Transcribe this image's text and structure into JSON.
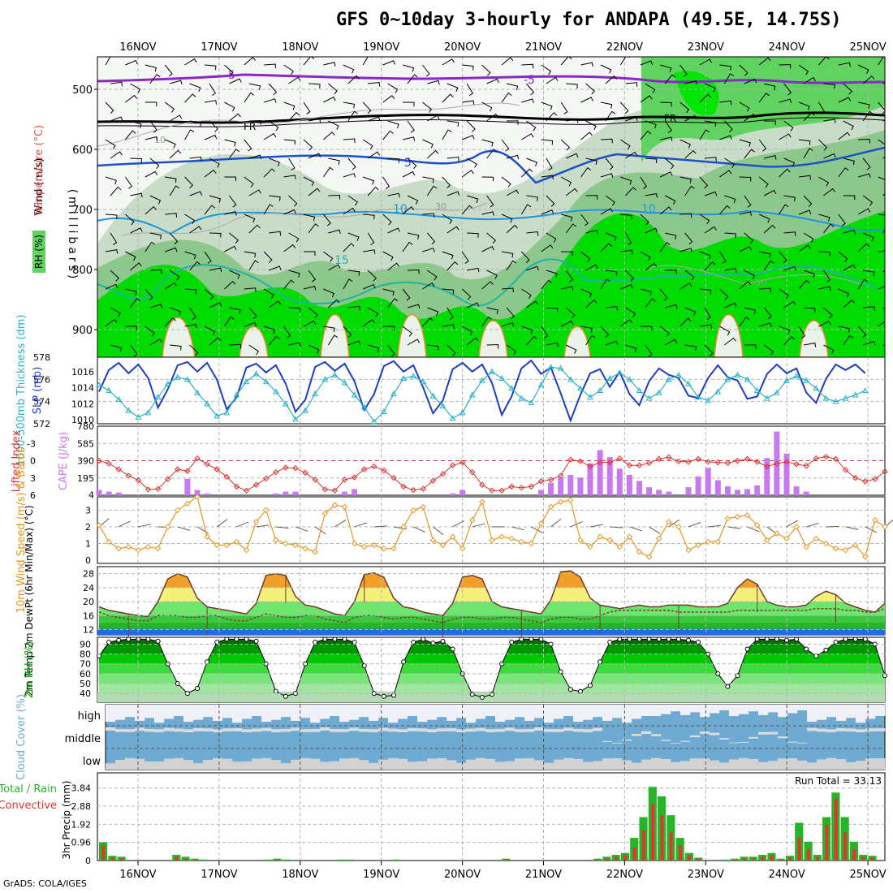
{
  "title": "GFS 0~10day 3-hourly for ANDAPA (49.5E, 14.75S)",
  "credit": "GrADS: COLA/IGES",
  "x_axis": {
    "labels": [
      "16NOV",
      "17NOV",
      "18NOV",
      "19NOV",
      "20NOV",
      "21NOV",
      "22NOV",
      "23NOV",
      "24NOV",
      "25NOV"
    ]
  },
  "run_total_label": "Run Total = 33.13",
  "colors": {
    "rh_dark": "#00c800",
    "rh_mid": "#5fd25f",
    "rh_light": "#c8dcc8",
    "temp_purple": "#8c28c8",
    "temp_blue": "#1e50c8",
    "temp_sky": "#1e96dc",
    "temp_teal": "#1eb4a0",
    "temp_orange": "#e68c28",
    "slp": "#1e3cc8",
    "thickness": "#28b4c8",
    "lifted": "#dc3232",
    "cape": "#c878f0",
    "wind10": "#e6961e",
    "temp2m": "#646464",
    "rh2m": "#00a000",
    "cloud": "#6eaad2",
    "precip_total": "#28b428",
    "precip_conv": "#e63232"
  },
  "chart_data": [
    {
      "type": "heatmap",
      "panel": "upper-air",
      "ylabel": "(millibars)",
      "legend_labels": [
        "Wind (m/s)",
        "Temperature (°C)",
        "RH (%)"
      ],
      "y_ticks": [
        500,
        600,
        700,
        800,
        900
      ],
      "contour_labels": [
        "-5",
        "-5",
        "FR",
        "FR",
        "5",
        "10",
        "10",
        "15",
        "10",
        "30",
        "50"
      ]
    },
    {
      "type": "line",
      "panel": "slp-thickness",
      "ylabel_left": "1000-500mb Thickness (dm)",
      "ylabel_right": "SLP (mb)",
      "y_ticks_left": [
        572,
        574,
        576,
        578
      ],
      "y_ticks_right": [
        1010,
        1012,
        1014,
        1016
      ],
      "series": [
        {
          "name": "SLP (mb)",
          "values": [
            1013.5,
            1016.2,
            1017.1,
            1015.8,
            1016.9,
            1015.2,
            1011.5,
            1013.8,
            1016.8,
            1017.2,
            1016.0,
            1017.1,
            1015.0,
            1011.3,
            1012.8,
            1016.5,
            1017.0,
            1015.9,
            1016.8,
            1014.5,
            1011.0,
            1012.5,
            1016.6,
            1017.2,
            1016.1,
            1017.0,
            1014.8,
            1011.2,
            1013.2,
            1016.7,
            1017.3,
            1016.0,
            1016.8,
            1014.0,
            1010.8,
            1012.4,
            1016.3,
            1017.1,
            1016.0,
            1016.9,
            1014.6,
            1010.6,
            1012.9,
            1016.4,
            1017.4,
            1015.7,
            1016.5,
            1013.3,
            1009.9,
            1013.1,
            1015.8,
            1016.3,
            1014.1,
            1016.0,
            1013.2,
            1011.8,
            1014.8,
            1016.4,
            1015.6,
            1015.2,
            1013.0,
            1012.7,
            1015.2,
            1016.8,
            1015.3,
            1014.9,
            1012.6,
            1012.9,
            1015.7,
            1016.9,
            1015.8,
            1016.4,
            1013.4,
            1012.1,
            1015.1,
            1016.9,
            1016.2,
            1016.9,
            1015.8
          ]
        },
        {
          "name": "1000-500mb Thickness (dm)",
          "values": [
            575.5,
            575.0,
            574.2,
            573.2,
            572.6,
            573.0,
            574.4,
            575.6,
            576.2,
            576.0,
            574.8,
            573.8,
            572.7,
            573.0,
            574.6,
            575.8,
            576.5,
            575.8,
            574.9,
            573.8,
            572.4,
            573.2,
            574.7,
            576.0,
            576.4,
            575.7,
            574.6,
            573.5,
            572.2,
            573.1,
            574.7,
            576.1,
            576.3,
            575.8,
            574.5,
            573.6,
            572.5,
            573.0,
            574.6,
            575.9,
            576.7,
            576.1,
            575.2,
            574.3,
            573.9,
            575.5,
            577.1,
            577.0,
            576.0,
            575.2,
            574.4,
            575.0,
            576.1,
            576.6,
            576.0,
            575.0,
            574.3,
            574.8,
            576.0,
            576.4,
            575.6,
            574.4,
            574.1,
            574.9,
            576.0,
            576.4,
            576.0,
            575.0,
            574.3,
            574.8,
            575.9,
            576.3,
            575.9,
            575.2,
            574.3,
            574.0,
            574.3,
            574.6,
            575.0
          ]
        }
      ]
    },
    {
      "type": "bar",
      "panel": "lifted-cape",
      "ylabel_left": "Lifted Index",
      "ylabel_right": "CAPE (J/kg)",
      "y_ticks_left": [
        -3,
        0,
        3,
        6
      ],
      "y_ticks_right": [
        4,
        195,
        390,
        585,
        780
      ],
      "series": [
        {
          "name": "Lifted Index",
          "values": [
            0.0,
            0.5,
            1.5,
            2.6,
            3.4,
            5.0,
            4.9,
            3.2,
            1.5,
            1.8,
            -0.4,
            0.6,
            1.5,
            2.8,
            4.5,
            5.2,
            4.2,
            3.1,
            2.0,
            1.2,
            1.3,
            2.1,
            3.3,
            5.0,
            5.2,
            3.3,
            2.9,
            1.5,
            1.0,
            1.7,
            3.0,
            4.5,
            5.1,
            4.9,
            3.5,
            2.3,
            0.8,
            0.3,
            2.0,
            4.2,
            5.2,
            5.2,
            4.5,
            4.7,
            4.5,
            3.6,
            3.3,
            2.6,
            -0.2,
            0.1,
            1.0,
            0.3,
            0.3,
            -0.4,
            0.8,
            0.8,
            0.4,
            -0.3,
            -0.6,
            0.1,
            0.2,
            -0.3,
            0.2,
            0.3,
            0.4,
            0.0,
            -0.3,
            0.2,
            1.0,
            0.5,
            0.2,
            0.6,
            0.9,
            -0.4,
            -0.7,
            -0.3,
            1.6,
            3.0,
            3.6,
            3.2,
            1.9
          ]
        },
        {
          "name": "CAPE (J/kg)",
          "values": [
            60,
            40,
            30,
            4,
            4,
            4,
            10,
            4,
            4,
            185,
            60,
            20,
            4,
            4,
            4,
            4,
            4,
            4,
            20,
            40,
            40,
            4,
            4,
            4,
            4,
            40,
            70,
            4,
            4,
            4,
            4,
            4,
            4,
            4,
            4,
            4,
            20,
            60,
            4,
            4,
            4,
            4,
            4,
            4,
            4,
            60,
            140,
            200,
            230,
            200,
            360,
            510,
            430,
            300,
            230,
            160,
            90,
            60,
            40,
            4,
            90,
            210,
            310,
            170,
            100,
            60,
            70,
            110,
            420,
            720,
            470,
            100,
            40,
            4,
            4,
            4,
            4,
            4,
            4,
            4,
            4
          ]
        }
      ]
    },
    {
      "type": "line",
      "panel": "wind10m",
      "ylabel": "10m Wind Speed (m/s) & Barbs",
      "y_ticks": [
        0,
        1,
        2,
        3
      ],
      "series": [
        {
          "name": "10m Wind Speed",
          "values": [
            2.1,
            1.1,
            0.7,
            0.8,
            0.6,
            0.8,
            0.7,
            2.0,
            3.0,
            3.4,
            3.8,
            1.4,
            0.9,
            0.9,
            1.1,
            0.6,
            2.3,
            3.0,
            1.2,
            1.0,
            0.9,
            0.7,
            0.5,
            2.8,
            3.3,
            3.2,
            1.0,
            0.8,
            0.9,
            0.7,
            0.7,
            2.0,
            3.0,
            3.2,
            1.2,
            0.9,
            1.4,
            0.7,
            2.4,
            3.5,
            1.2,
            1.4,
            1.3,
            1.1,
            1.0,
            2.2,
            3.2,
            3.5,
            3.6,
            1.2,
            0.8,
            1.4,
            1.2,
            0.8,
            1.4,
            0.5,
            0.2,
            1.3,
            2.3,
            2.0,
            0.6,
            0.9,
            1.1,
            1.1,
            2.5,
            2.6,
            2.7,
            2.1,
            1.2,
            1.6,
            1.3,
            2.0,
            0.8,
            1.3,
            1.0,
            0.7,
            0.6,
            0.9,
            0.2,
            2.4,
            2.0
          ]
        }
      ]
    },
    {
      "type": "area",
      "panel": "temp2m",
      "ylabel": "2m Temp 2m DewPt (6hr Min/Max) (°C)",
      "y_ticks": [
        12,
        16,
        20,
        24,
        28
      ],
      "series": [
        {
          "name": "2m Temp",
          "values": [
            18.5,
            17.5,
            17.0,
            16.5,
            16.0,
            15.8,
            20.0,
            26.5,
            28.0,
            27.0,
            21.0,
            18.5,
            18.0,
            17.5,
            17.0,
            16.5,
            19.5,
            27.5,
            28.0,
            27.5,
            21.5,
            19.0,
            18.5,
            17.5,
            16.5,
            16.0,
            20.0,
            27.8,
            28.2,
            27.0,
            21.0,
            18.5,
            18.0,
            17.0,
            16.5,
            16.0,
            19.5,
            27.0,
            27.5,
            26.5,
            20.0,
            18.5,
            18.0,
            17.5,
            17.0,
            16.5,
            20.5,
            28.5,
            28.8,
            27.0,
            21.0,
            19.0,
            18.5,
            18.0,
            18.5,
            19.0,
            18.5,
            18.5,
            19.0,
            19.0,
            19.0,
            18.5,
            18.5,
            18.5,
            19.5,
            24.0,
            26.5,
            25.0,
            20.0,
            19.0,
            18.5,
            18.5,
            19.0,
            21.5,
            23.0,
            22.0,
            19.5,
            18.5,
            17.5,
            17.0,
            19.5
          ]
        },
        {
          "name": "2m DewPt",
          "values": [
            17.0,
            16.0,
            15.5,
            15.0,
            14.5,
            14.5,
            16.0,
            16.0,
            16.0,
            15.5,
            15.5,
            16.0,
            16.0,
            15.0,
            14.5,
            14.5,
            15.5,
            16.5,
            16.0,
            15.5,
            15.5,
            16.0,
            16.0,
            15.0,
            14.5,
            14.0,
            15.5,
            16.0,
            16.0,
            15.5,
            15.0,
            15.5,
            15.5,
            15.0,
            14.5,
            14.0,
            15.0,
            15.5,
            15.5,
            15.0,
            15.0,
            15.5,
            15.5,
            15.0,
            14.5,
            14.0,
            15.0,
            15.5,
            15.5,
            15.0,
            15.0,
            16.0,
            17.0,
            17.5,
            17.5,
            17.5,
            17.5,
            17.5,
            17.5,
            17.0,
            17.0,
            17.0,
            17.0,
            17.0,
            17.0,
            17.5,
            17.5,
            17.5,
            17.5,
            17.5,
            17.5,
            17.5,
            17.5,
            18.0,
            18.0,
            18.0,
            17.5,
            17.5,
            17.0,
            17.0,
            18.0
          ]
        }
      ]
    },
    {
      "type": "area",
      "panel": "rh2m",
      "ylabel": "2m RH (%)",
      "y_ticks": [
        40,
        50,
        60,
        70,
        80,
        90
      ],
      "series": [
        {
          "name": "2m RH",
          "values": [
            78,
            92,
            94,
            95,
            95,
            95,
            93,
            70,
            50,
            40,
            45,
            72,
            92,
            95,
            95,
            95,
            93,
            70,
            42,
            37,
            40,
            70,
            92,
            95,
            95,
            95,
            92,
            68,
            40,
            37,
            38,
            72,
            92,
            95,
            91,
            93,
            85,
            60,
            39,
            36,
            39,
            70,
            92,
            95,
            95,
            95,
            90,
            62,
            44,
            42,
            48,
            72,
            92,
            95,
            95,
            95,
            95,
            95,
            95,
            95,
            94,
            92,
            80,
            60,
            47,
            58,
            85,
            95,
            95,
            95,
            94,
            95,
            85,
            78,
            84,
            92,
            95,
            95,
            95,
            90,
            58
          ]
        }
      ]
    },
    {
      "type": "bar",
      "panel": "cloud-cover",
      "ylabel": "Cloud Cover (%)",
      "y_labels": [
        "high",
        "middle",
        "low"
      ]
    },
    {
      "type": "bar",
      "panel": "precip",
      "ylabel": "3hr Precip (mm)",
      "legend": [
        "Total / Rain",
        "Convective"
      ],
      "y_ticks": [
        0,
        0.96,
        1.92,
        2.88,
        3.84
      ],
      "series": [
        {
          "name": "Total",
          "values": [
            0.97,
            0.25,
            0.2,
            0,
            0,
            0,
            0,
            0,
            0.3,
            0.2,
            0.1,
            0.05,
            0,
            0,
            0,
            0,
            0,
            0,
            0.05,
            0.1,
            0.05,
            0,
            0,
            0,
            0,
            0,
            0.05,
            0.05,
            0,
            0,
            0,
            0,
            0.05,
            0,
            0,
            0,
            0,
            0,
            0,
            0,
            0,
            0,
            0,
            0,
            0.1,
            0,
            0,
            0,
            0,
            0,
            0,
            0,
            0,
            0,
            0.1,
            0.2,
            0.3,
            0.4,
            1.2,
            2.3,
            3.9,
            3.4,
            2.4,
            1.2,
            0.4,
            0.15,
            0,
            0,
            0.05,
            0.1,
            0.2,
            0.2,
            0.3,
            0.4,
            0.1,
            0.25,
            2.0,
            1.0,
            0.3,
            2.3,
            3.6,
            2.3,
            1.0,
            0.3,
            0.25,
            0
          ]
        },
        {
          "name": "Convective",
          "values": [
            0.8,
            0.15,
            0.1,
            0,
            0,
            0,
            0,
            0,
            0.2,
            0.1,
            0.05,
            0,
            0,
            0,
            0,
            0,
            0,
            0,
            0,
            0.05,
            0,
            0,
            0,
            0,
            0,
            0,
            0,
            0,
            0,
            0,
            0,
            0,
            0,
            0,
            0,
            0,
            0,
            0,
            0,
            0,
            0,
            0,
            0,
            0,
            0.05,
            0,
            0,
            0,
            0,
            0,
            0,
            0,
            0,
            0,
            0.05,
            0.1,
            0.2,
            0.3,
            0.7,
            1.6,
            3.0,
            2.4,
            1.5,
            0.8,
            0.3,
            0.1,
            0,
            0,
            0,
            0.05,
            0.1,
            0.1,
            0.2,
            0.3,
            0.05,
            0.15,
            1.2,
            0.6,
            0.2,
            1.9,
            3.3,
            1.5,
            0.6,
            0.2,
            0.15,
            0
          ]
        }
      ]
    }
  ]
}
